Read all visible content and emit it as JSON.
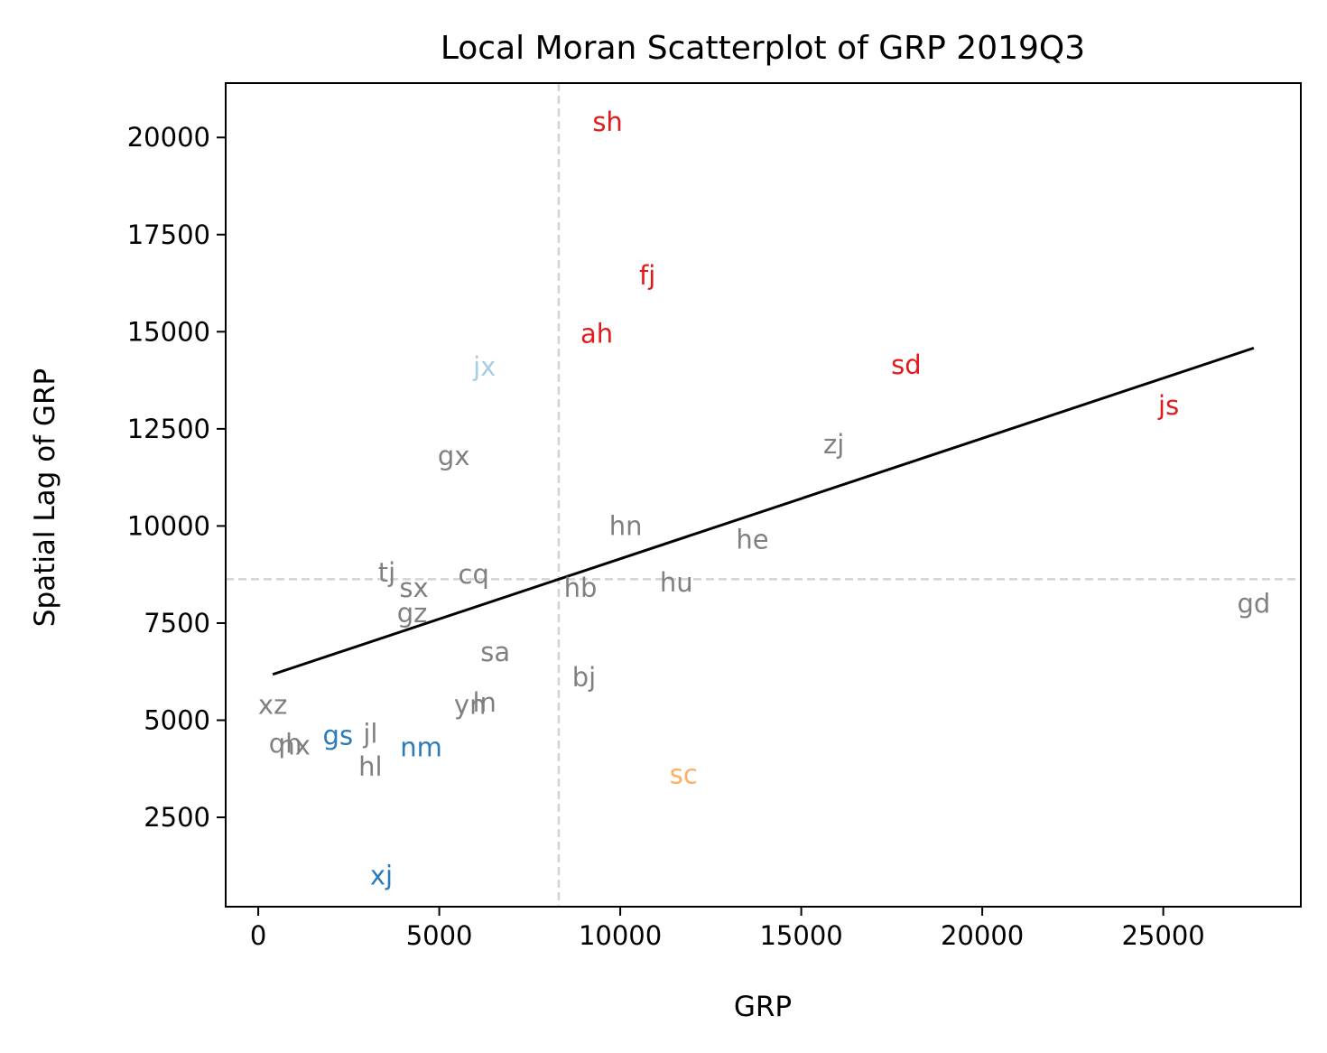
{
  "chart_data": {
    "type": "scatter",
    "title": "Local Moran Scatterplot of GRP 2019Q3",
    "xlabel": "GRP",
    "ylabel": "Spatial Lag of GRP",
    "xlim": [
      -900,
      28800
    ],
    "ylim": [
      200,
      21400
    ],
    "x_ticks": [
      0,
      5000,
      10000,
      15000,
      20000,
      25000
    ],
    "y_ticks": [
      2500,
      5000,
      7500,
      10000,
      12500,
      15000,
      17500,
      20000
    ],
    "mean_x": 8300,
    "mean_y": 8630,
    "regression_line": {
      "x": [
        400,
        27500
      ],
      "y": [
        6180,
        14580
      ]
    },
    "colors": {
      "hh_sig": "#e31a1c",
      "lh_sig": "#a6cee3",
      "ll_sig": "#2b7bba",
      "hl_sig": "#fdae61",
      "not_sig": "#808080",
      "mean_lines": "#d3d3d3",
      "regression": "#000000"
    },
    "points": [
      {
        "label": "sh",
        "x": 9650,
        "y": 20400,
        "group": "hh_sig"
      },
      {
        "label": "fj",
        "x": 10750,
        "y": 16450,
        "group": "hh_sig"
      },
      {
        "label": "ah",
        "x": 9350,
        "y": 14950,
        "group": "hh_sig"
      },
      {
        "label": "sd",
        "x": 17900,
        "y": 14150,
        "group": "hh_sig"
      },
      {
        "label": "js",
        "x": 25150,
        "y": 13100,
        "group": "hh_sig"
      },
      {
        "label": "jx",
        "x": 6250,
        "y": 14100,
        "group": "lh_sig"
      },
      {
        "label": "gx",
        "x": 5400,
        "y": 11800,
        "group": "not_sig"
      },
      {
        "label": "zj",
        "x": 15900,
        "y": 12100,
        "group": "not_sig"
      },
      {
        "label": "hn",
        "x": 10150,
        "y": 10000,
        "group": "not_sig"
      },
      {
        "label": "he",
        "x": 13650,
        "y": 9650,
        "group": "not_sig"
      },
      {
        "label": "tj",
        "x": 3550,
        "y": 8800,
        "group": "not_sig"
      },
      {
        "label": "cq",
        "x": 5950,
        "y": 8750,
        "group": "not_sig"
      },
      {
        "label": "sx",
        "x": 4300,
        "y": 8400,
        "group": "not_sig"
      },
      {
        "label": "hb",
        "x": 8900,
        "y": 8400,
        "group": "not_sig"
      },
      {
        "label": "hu",
        "x": 11550,
        "y": 8550,
        "group": "not_sig"
      },
      {
        "label": "gz",
        "x": 4250,
        "y": 7750,
        "group": "not_sig"
      },
      {
        "label": "gd",
        "x": 27500,
        "y": 8000,
        "group": "not_sig"
      },
      {
        "label": "sa",
        "x": 6550,
        "y": 6750,
        "group": "not_sig"
      },
      {
        "label": "bj",
        "x": 9000,
        "y": 6100,
        "group": "not_sig"
      },
      {
        "label": "yn",
        "x": 5850,
        "y": 5400,
        "group": "not_sig"
      },
      {
        "label": "ln",
        "x": 6250,
        "y": 5450,
        "group": "not_sig"
      },
      {
        "label": "xz",
        "x": 400,
        "y": 5400,
        "group": "not_sig"
      },
      {
        "label": "jl",
        "x": 3100,
        "y": 4650,
        "group": "not_sig"
      },
      {
        "label": "qh",
        "x": 750,
        "y": 4400,
        "group": "not_sig"
      },
      {
        "label": "nx",
        "x": 1000,
        "y": 4350,
        "group": "not_sig"
      },
      {
        "label": "hl",
        "x": 3100,
        "y": 3800,
        "group": "not_sig"
      },
      {
        "label": "gs",
        "x": 2200,
        "y": 4600,
        "group": "ll_sig"
      },
      {
        "label": "nm",
        "x": 4500,
        "y": 4300,
        "group": "ll_sig"
      },
      {
        "label": "xj",
        "x": 3400,
        "y": 1000,
        "group": "ll_sig"
      },
      {
        "label": "sc",
        "x": 11750,
        "y": 3600,
        "group": "hl_sig"
      }
    ]
  }
}
